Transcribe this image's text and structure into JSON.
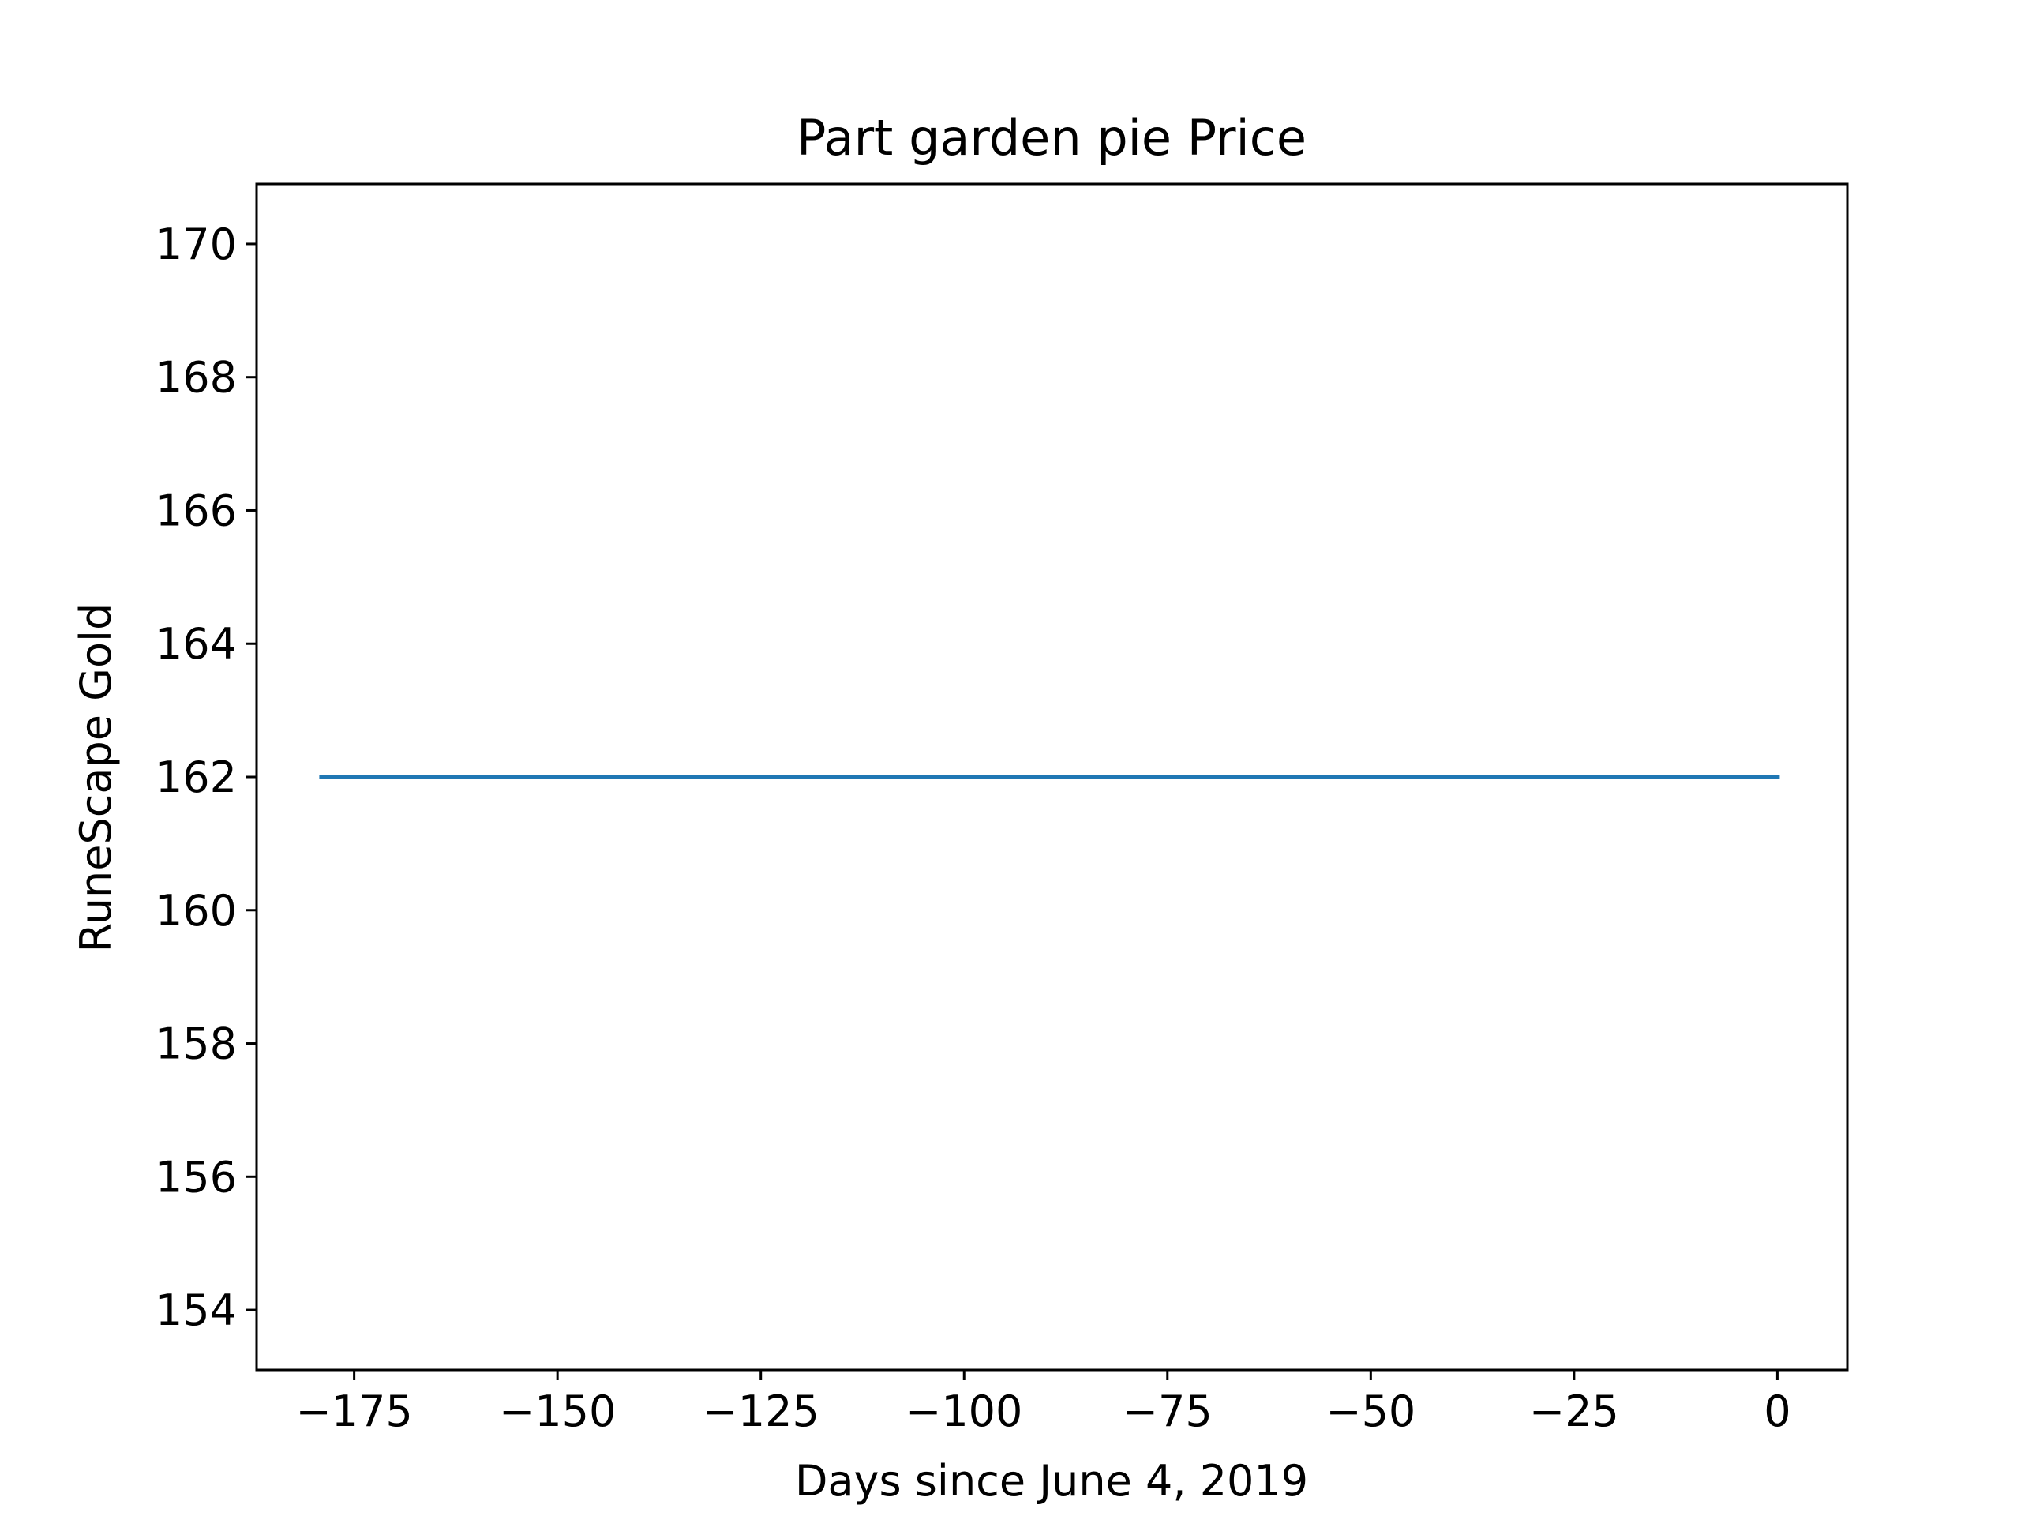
{
  "chart_data": {
    "type": "line",
    "title": "Part garden pie Price",
    "xlabel": "Days since June 4, 2019",
    "ylabel": "RuneScape Gold",
    "xlim": [
      -187,
      8.6
    ],
    "ylim": [
      153.1,
      170.9
    ],
    "xticks": [
      -175,
      -150,
      -125,
      -100,
      -75,
      -50,
      -25,
      0
    ],
    "xtick_labels": [
      "−175",
      "−150",
      "−125",
      "−100",
      "−75",
      "−50",
      "−25",
      "0"
    ],
    "yticks": [
      154,
      156,
      158,
      160,
      162,
      164,
      166,
      168,
      170
    ],
    "ytick_labels": [
      "154",
      "156",
      "158",
      "160",
      "162",
      "164",
      "166",
      "168",
      "170"
    ],
    "grid": false,
    "series": [
      {
        "color": "#1f77b4",
        "x": [
          -179,
          0
        ],
        "y": [
          162,
          162
        ]
      }
    ]
  }
}
